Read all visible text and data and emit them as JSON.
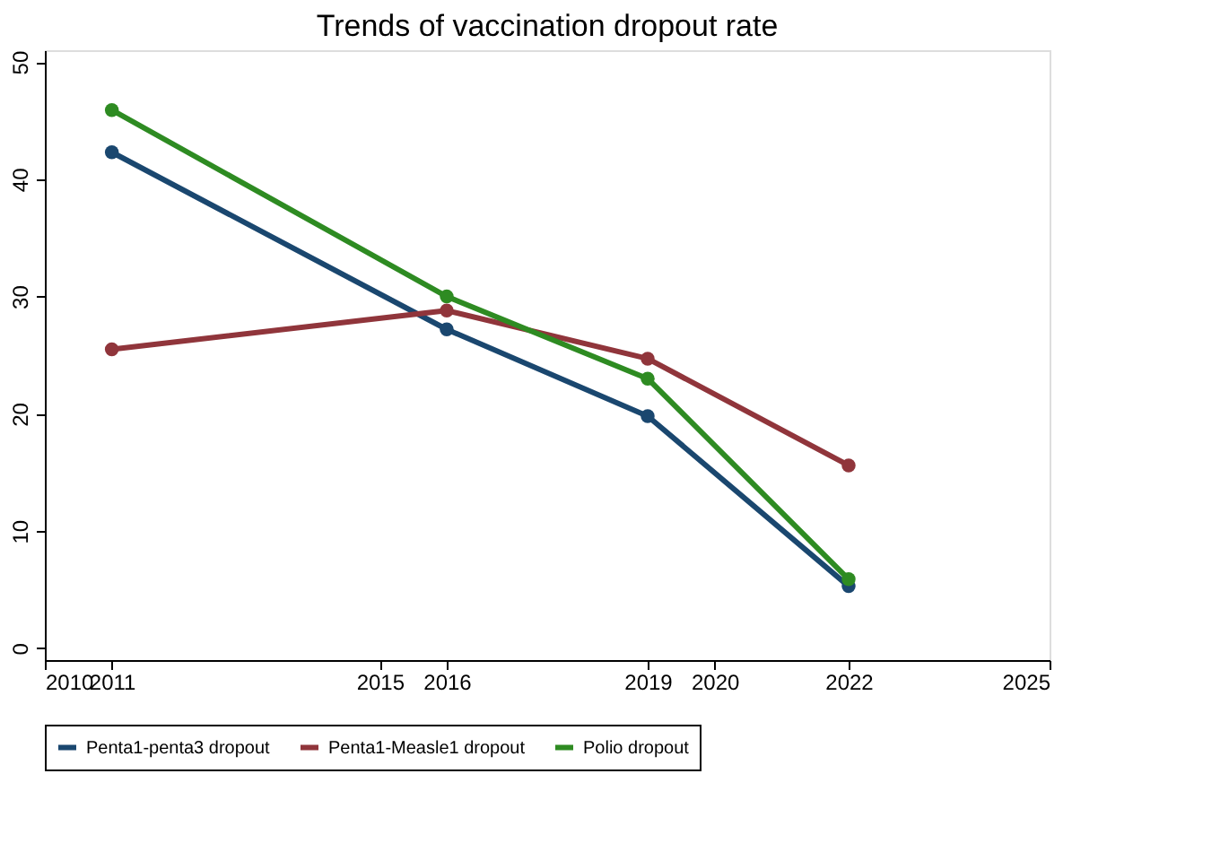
{
  "chart_data": {
    "type": "line",
    "title": "Trends of vaccination dropout rate",
    "x": [
      2011,
      2016,
      2019,
      2022
    ],
    "series": [
      {
        "name": "Penta1-penta3 dropout",
        "color": "#1a476f",
        "values": [
          42.3,
          27.2,
          19.8,
          5.3
        ]
      },
      {
        "name": "Penta1-Measle1 dropout",
        "color": "#90353b",
        "values": [
          25.5,
          28.8,
          24.7,
          15.6
        ]
      },
      {
        "name": "Polio dropout",
        "color": "#2e8b22",
        "values": [
          45.9,
          30.0,
          23.0,
          5.9
        ]
      }
    ],
    "xlim": [
      2010,
      2025
    ],
    "xticks": [
      2010,
      2011,
      2015,
      2016,
      2019,
      2020,
      2022,
      2025
    ],
    "ylim": [
      -1,
      51
    ],
    "yticks": [
      0,
      10,
      20,
      30,
      40,
      50
    ],
    "grid": false,
    "legend": "bottom",
    "marker": "circle",
    "line_style": "solid"
  }
}
